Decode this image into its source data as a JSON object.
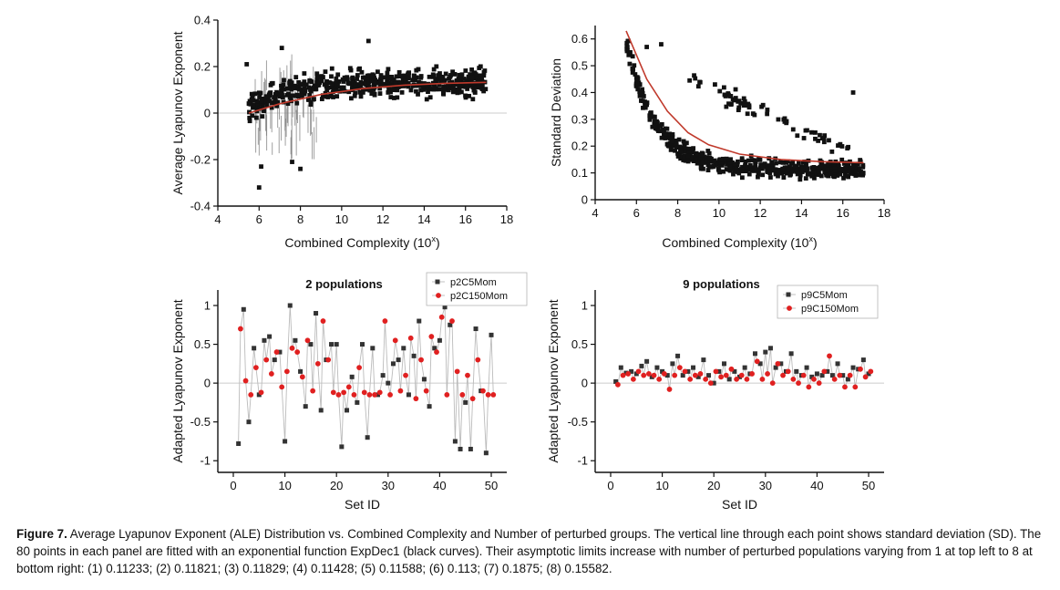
{
  "chart_data": [
    {
      "id": "p1",
      "type": "scatter",
      "title": "",
      "xlabel": "Combined Complexity (10",
      "xlabel_sup": "x",
      "xlabel_end": ")",
      "ylabel": "Average Lyapunov Exponent",
      "xlim": [
        4,
        18
      ],
      "ylim": [
        -0.4,
        0.4
      ],
      "xticks": [
        "4",
        "6",
        "8",
        "10",
        "12",
        "14",
        "16",
        "18"
      ],
      "yticks": [
        "-0.4",
        "-0.2",
        "0",
        "0.2",
        "0.4"
      ],
      "hline": 0,
      "series": [
        {
          "name": "ALE",
          "note": "~600 points scattered between x=5.5 and 17, mostly between -0.1 and 0.28, with low outliers near x=6 (-0.32) and x=8 (-0.24)"
        },
        {
          "name": "fit",
          "type": "line",
          "color": "#c0392b",
          "x": [
            5.5,
            7,
            9,
            11,
            13,
            15,
            17
          ],
          "y": [
            0.0,
            0.04,
            0.08,
            0.105,
            0.12,
            0.128,
            0.132
          ]
        }
      ]
    },
    {
      "id": "p2",
      "type": "scatter",
      "title": "",
      "xlabel": "Combined Complexity (10",
      "xlabel_sup": "x",
      "xlabel_end": ")",
      "ylabel": "Standard Deviation",
      "xlim": [
        4,
        18
      ],
      "ylim": [
        0,
        0.65
      ],
      "xticks": [
        "4",
        "6",
        "8",
        "10",
        "12",
        "14",
        "16",
        "18"
      ],
      "yticks": [
        "0",
        "0.1",
        "0.2",
        "0.3",
        "0.4",
        "0.5",
        "0.6"
      ],
      "series": [
        {
          "name": "SD",
          "note": "points decaying from ~0.55 at x=6 to a band of 0.05-0.25 beyond x=10, plus an upper arm near 0.3-0.45"
        },
        {
          "name": "fit",
          "type": "line",
          "color": "#c0392b",
          "x": [
            5.5,
            6.5,
            7.5,
            8.5,
            9.5,
            11,
            13,
            15,
            17
          ],
          "y": [
            0.63,
            0.45,
            0.33,
            0.25,
            0.205,
            0.17,
            0.15,
            0.142,
            0.138
          ]
        }
      ]
    },
    {
      "id": "p3",
      "type": "scatter",
      "title": "2 populations",
      "xlabel": "Set ID",
      "ylabel": "Adapted Lyapunov Exponent",
      "xlim": [
        -3,
        53
      ],
      "ylim": [
        -1.15,
        1.2
      ],
      "xticks": [
        "0",
        "10",
        "20",
        "30",
        "40",
        "50"
      ],
      "yticks": [
        "-1",
        "-0.5",
        "0",
        "0.5",
        "1"
      ],
      "hline": 0,
      "legend_position": "top-right",
      "series": [
        {
          "name": "p2C5Mom",
          "color": "#333333",
          "x": [
            1,
            2,
            3,
            4,
            5,
            6,
            7,
            8,
            9,
            10,
            11,
            12,
            13,
            14,
            15,
            16,
            17,
            18,
            19,
            20,
            21,
            22,
            23,
            24,
            25,
            26,
            27,
            28,
            29,
            30,
            31,
            32,
            33,
            34,
            35,
            36,
            37,
            38,
            39,
            40,
            41,
            42,
            43,
            44,
            45,
            46,
            47,
            48,
            49,
            50
          ],
          "values": [
            -0.78,
            0.95,
            -0.5,
            0.45,
            -0.15,
            0.55,
            0.6,
            0.3,
            0.4,
            -0.75,
            1.0,
            0.55,
            0.15,
            -0.3,
            0.5,
            0.9,
            -0.35,
            0.3,
            0.5,
            0.5,
            -0.82,
            -0.35,
            0.08,
            -0.25,
            0.5,
            -0.7,
            0.45,
            -0.15,
            0.1,
            0.0,
            0.25,
            0.3,
            0.45,
            -0.15,
            0.35,
            0.8,
            0.05,
            -0.3,
            0.45,
            0.55,
            0.98,
            0.75,
            -0.75,
            -0.85,
            -0.25,
            -0.85,
            0.7,
            -0.1,
            -0.9,
            0.62
          ]
        },
        {
          "name": "p2C150Mom",
          "color": "#e02020",
          "x": [
            1,
            2,
            3,
            4,
            5,
            6,
            7,
            8,
            9,
            10,
            11,
            12,
            13,
            14,
            15,
            16,
            17,
            18,
            19,
            20,
            21,
            22,
            23,
            24,
            25,
            26,
            27,
            28,
            29,
            30,
            31,
            32,
            33,
            34,
            35,
            36,
            37,
            38,
            39,
            40,
            41,
            42,
            43,
            44,
            45,
            46,
            47,
            48,
            49,
            50
          ],
          "values": [
            0.7,
            0.03,
            -0.15,
            0.2,
            -0.12,
            0.3,
            0.12,
            0.4,
            -0.05,
            0.15,
            0.45,
            0.4,
            0.08,
            0.55,
            -0.1,
            0.25,
            0.8,
            0.3,
            -0.12,
            -0.15,
            -0.12,
            -0.05,
            -0.15,
            0.2,
            -0.12,
            -0.15,
            -0.15,
            -0.12,
            0.8,
            -0.15,
            0.55,
            -0.1,
            0.1,
            0.58,
            -0.2,
            0.3,
            -0.1,
            0.6,
            0.4,
            0.85,
            -0.15,
            0.8,
            0.15,
            -0.15,
            0.1,
            -0.2,
            0.3,
            -0.1,
            -0.15,
            -0.15
          ]
        }
      ]
    },
    {
      "id": "p4",
      "type": "scatter",
      "title": "9 populations",
      "xlabel": "Set ID",
      "ylabel": "Adapted Lyapunov Exponent",
      "xlim": [
        -3,
        53
      ],
      "ylim": [
        -1.15,
        1.2
      ],
      "xticks": [
        "0",
        "10",
        "20",
        "30",
        "40",
        "50"
      ],
      "yticks": [
        "-1",
        "-0.5",
        "0",
        "0.5",
        "1"
      ],
      "hline": 0,
      "legend_position": "top-right",
      "series": [
        {
          "name": "p9C5Mom",
          "color": "#333333",
          "x": [
            1,
            2,
            3,
            4,
            5,
            6,
            7,
            8,
            9,
            10,
            11,
            12,
            13,
            14,
            15,
            16,
            17,
            18,
            19,
            20,
            21,
            22,
            23,
            24,
            25,
            26,
            27,
            28,
            29,
            30,
            31,
            32,
            33,
            34,
            35,
            36,
            37,
            38,
            39,
            40,
            41,
            42,
            43,
            44,
            45,
            46,
            47,
            48,
            49,
            50
          ],
          "values": [
            0.02,
            0.2,
            0.13,
            0.15,
            0.12,
            0.22,
            0.28,
            0.08,
            0.2,
            0.15,
            0.1,
            0.25,
            0.35,
            0.1,
            0.15,
            0.2,
            0.08,
            0.3,
            0.1,
            0.0,
            0.15,
            0.25,
            0.05,
            0.15,
            0.08,
            0.2,
            0.12,
            0.38,
            0.25,
            0.4,
            0.45,
            0.2,
            0.25,
            0.15,
            0.38,
            0.15,
            0.1,
            0.2,
            0.08,
            0.12,
            0.1,
            0.15,
            0.1,
            0.25,
            0.1,
            0.05,
            0.2,
            0.18,
            0.3,
            0.12
          ]
        },
        {
          "name": "p9C150Mom",
          "color": "#e02020",
          "x": [
            1,
            2,
            3,
            4,
            5,
            6,
            7,
            8,
            9,
            10,
            11,
            12,
            13,
            14,
            15,
            16,
            17,
            18,
            19,
            20,
            21,
            22,
            23,
            24,
            25,
            26,
            27,
            28,
            29,
            30,
            31,
            32,
            33,
            34,
            35,
            36,
            37,
            38,
            39,
            40,
            41,
            42,
            43,
            44,
            45,
            46,
            47,
            48,
            49,
            50
          ],
          "values": [
            -0.02,
            0.1,
            0.12,
            0.05,
            0.15,
            0.1,
            0.12,
            0.1,
            0.05,
            0.12,
            -0.08,
            0.1,
            0.2,
            0.15,
            0.05,
            0.1,
            0.12,
            0.05,
            0.0,
            0.15,
            0.08,
            0.1,
            0.18,
            0.05,
            0.1,
            0.05,
            0.12,
            0.28,
            0.05,
            0.12,
            0.0,
            0.25,
            0.1,
            0.15,
            0.05,
            0.0,
            0.1,
            -0.05,
            0.05,
            0.0,
            0.15,
            0.35,
            0.05,
            0.1,
            -0.05,
            0.1,
            -0.05,
            0.18,
            0.08,
            0.15
          ]
        }
      ]
    }
  ],
  "caption": {
    "label": "Figure 7.",
    "text": "Average Lyapunov Exponent (ALE) Distribution vs. Combined Complexity and Number of perturbed groups. The vertical line through each point shows standard deviation (SD). The 80 points in each panel are fitted with an exponential function ExpDec1 (black curves). Their asymptotic limits increase with number of perturbed populations varying from 1 at top left to 8 at bottom right: (1) 0.11233; (2) 0.11821; (3) 0.11829; (4) 0.11428; (5) 0.11588; (6) 0.113; (7) 0.1875; (8) 0.15582."
  },
  "colors": {
    "axis": "#111111",
    "zero_line": "#cccccc",
    "fit": "#c0392b",
    "black_series": "#333333",
    "red_series": "#e02020",
    "connect_line": "#bbbbbb"
  }
}
